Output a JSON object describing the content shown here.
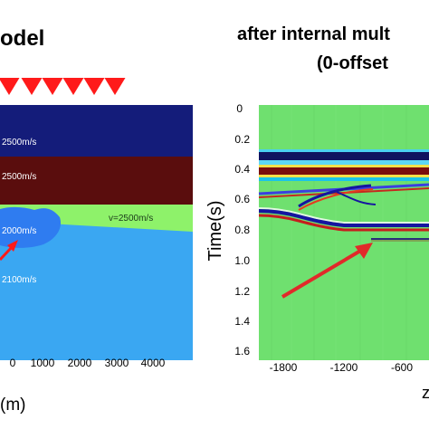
{
  "left_panel": {
    "title": "odel",
    "layers": [
      {
        "label": "2500m/s",
        "color": "#141c7a"
      },
      {
        "label": "2500m/s",
        "color": "#5a0d0d"
      },
      {
        "label": "v=2500m/s",
        "color": "#8ef26a"
      },
      {
        "label": "2000m/s",
        "color": "#2f7cf0"
      },
      {
        "label": "2100m/s",
        "color": "#3aa7f2"
      }
    ],
    "x_ticks": [
      "0",
      "1000",
      "2000",
      "3000",
      "4000"
    ],
    "x_label": "(m)",
    "source_marker_count": 6,
    "marker_color": "#ff1a1a"
  },
  "right_panel": {
    "title_line1": "after internal mult",
    "title_line2": "(0-offset",
    "y_label": "Time(s)",
    "y_ticks": [
      "0",
      "0.2",
      "0.4",
      "0.6",
      "0.8",
      "1.0",
      "1.2",
      "1.4",
      "1.6"
    ],
    "x_ticks": [
      "-1800",
      "-1200",
      "-600"
    ],
    "background_color": "#6fe06f",
    "arrow_color": "#e12a2a"
  }
}
